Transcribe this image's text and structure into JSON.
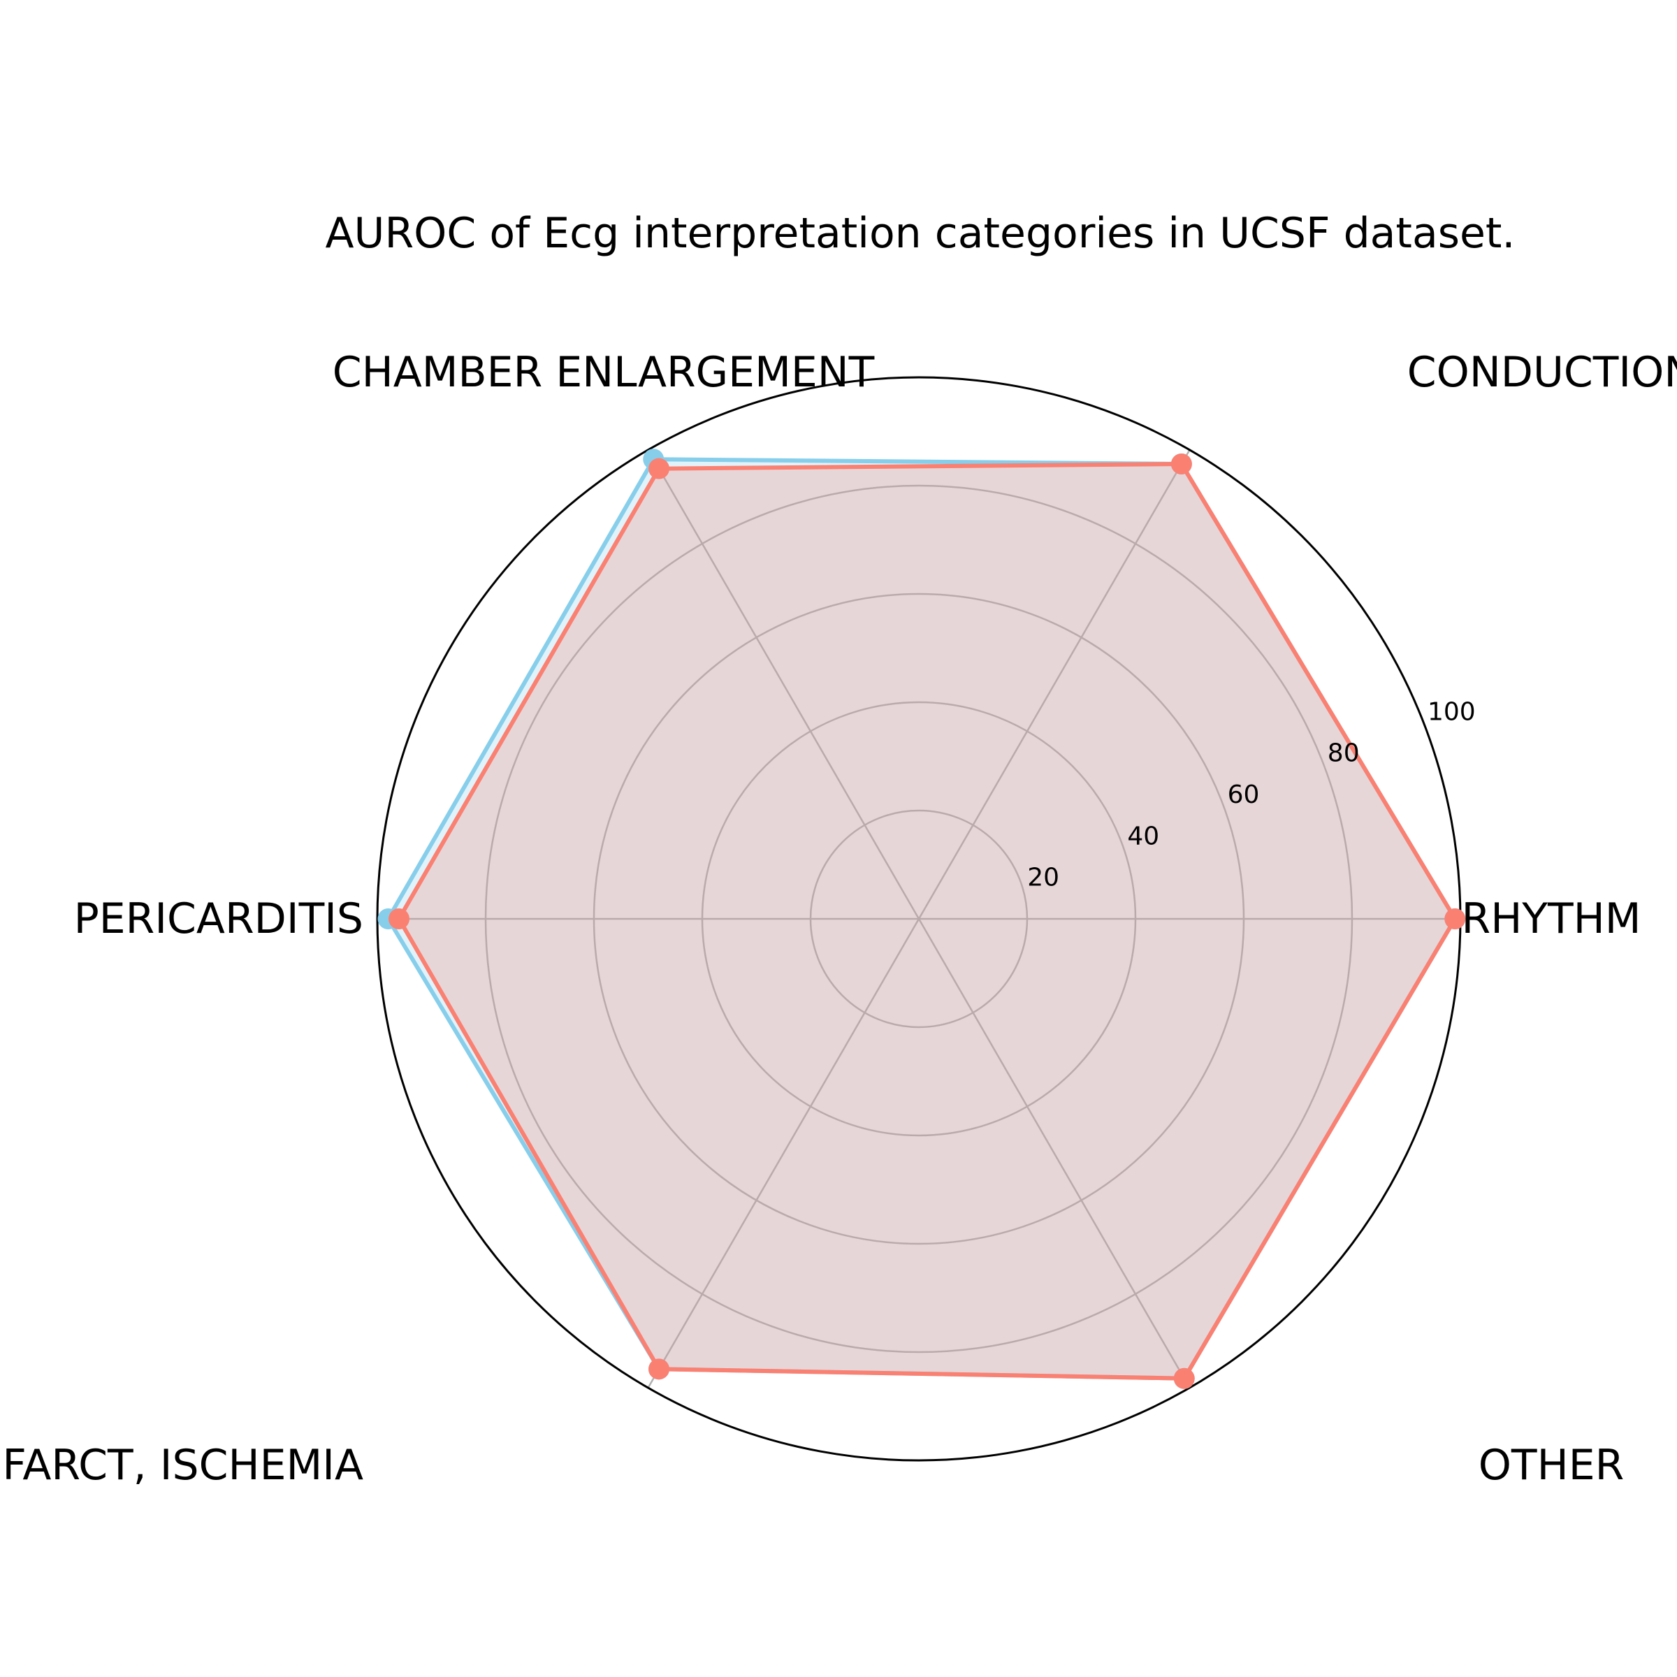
{
  "chart_data": {
    "type": "radar",
    "title": "AUROC of Ecg interpretation categories in UCSF dataset.",
    "categories": [
      "RHYTHM",
      "CONDUCTION",
      "CHAMBER ENLARGEMENT",
      "PERICARDITIS",
      "INFARCT, ISCHEMIA",
      "OTHER"
    ],
    "rlim": [
      0,
      100
    ],
    "rticks": [
      20,
      40,
      60,
      80,
      100
    ],
    "grid": true,
    "legend": false,
    "series": [
      {
        "values": [
          99,
          97,
          98,
          98,
          96,
          98
        ],
        "color": "#87ceeb"
      },
      {
        "values": [
          99,
          97,
          96,
          96,
          96,
          98
        ],
        "color": "#fa8072"
      }
    ],
    "fill_color": "#e2cdd0"
  }
}
